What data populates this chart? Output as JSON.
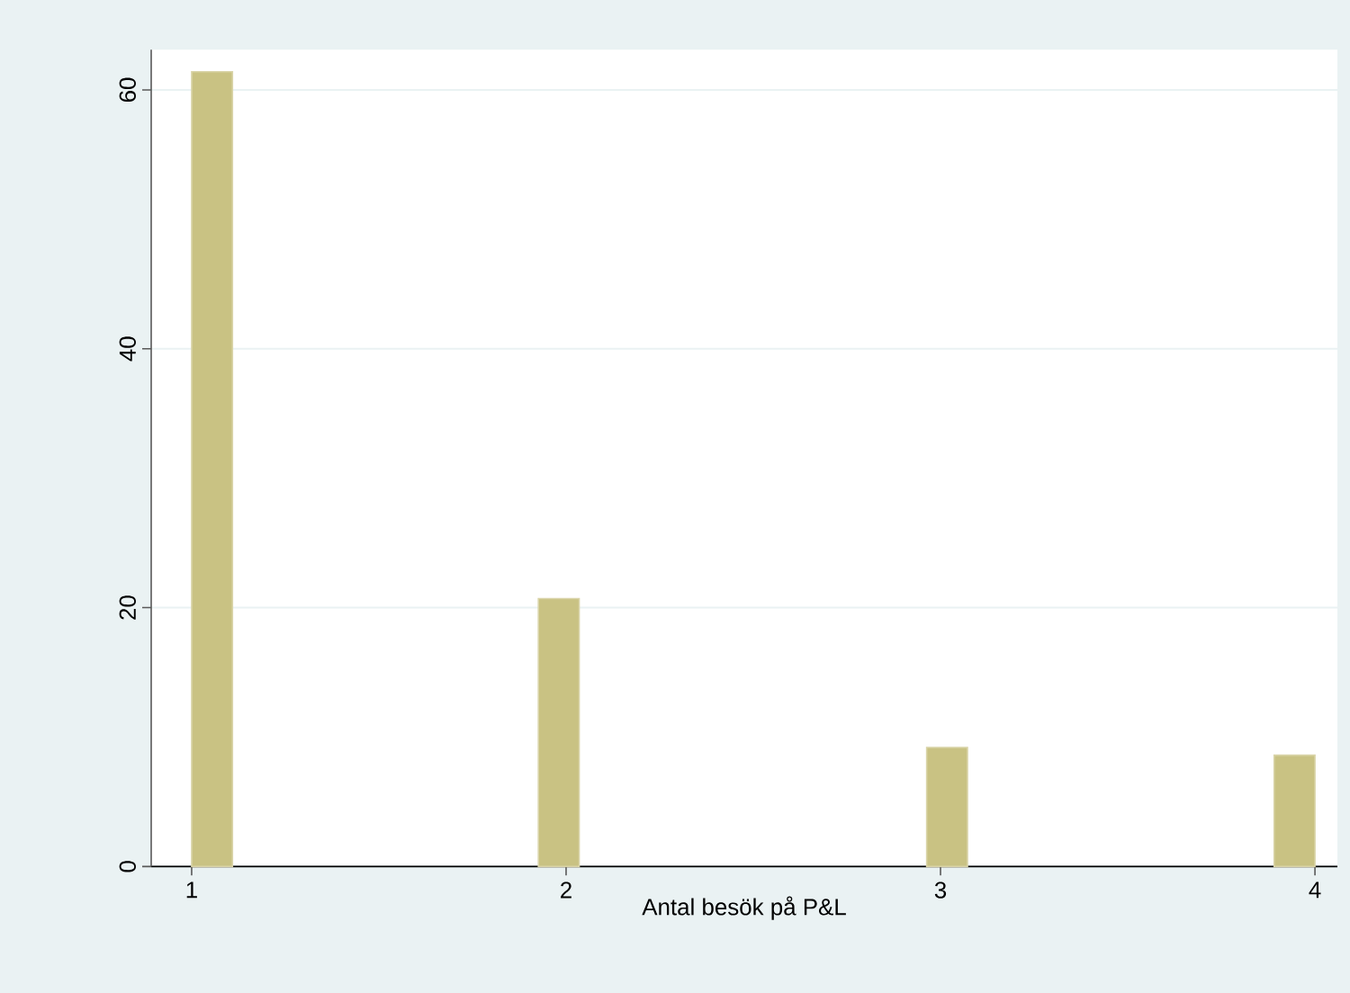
{
  "chart_data": {
    "type": "histogram",
    "xlabel": "Antal besök på P&L",
    "bins": [
      1,
      1.109,
      1.926,
      2.035,
      2.963,
      3.072,
      3.891,
      4
    ],
    "values": [
      61.4,
      0,
      20.7,
      0,
      9.2,
      0,
      8.6
    ],
    "color": "#c9c283",
    "xlim": [
      0.892,
      4.06
    ],
    "ylim": [
      0,
      63.1
    ],
    "xticks": [
      1,
      2,
      3,
      4
    ],
    "yticks": [
      0,
      20,
      40,
      60
    ],
    "grid": "y"
  }
}
